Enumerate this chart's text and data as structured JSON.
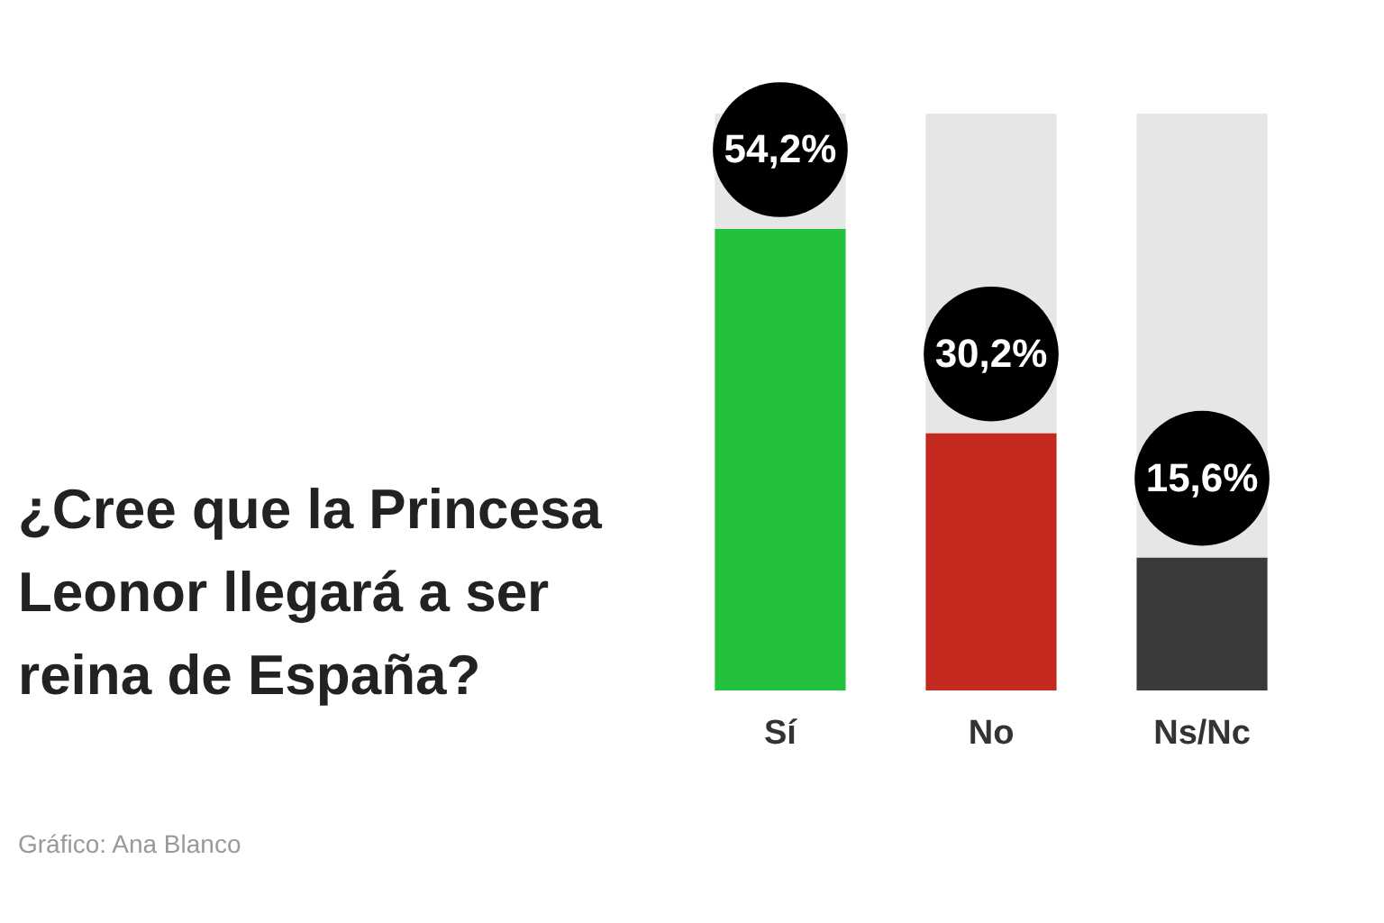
{
  "chart_data": {
    "type": "bar",
    "title": "¿Cree que la Princesa Leonor llegará a ser reina de España?",
    "categories": [
      "Sí",
      "No",
      "Ns/Nc"
    ],
    "values": [
      54.2,
      30.2,
      15.6
    ],
    "colors": [
      "#22c13c",
      "#c42a20",
      "#3a3a3a"
    ],
    "value_labels": [
      "54,2%",
      "30,2%",
      "15,6%"
    ],
    "annotations": [
      "Gráfico: Ana Blanco"
    ]
  }
}
